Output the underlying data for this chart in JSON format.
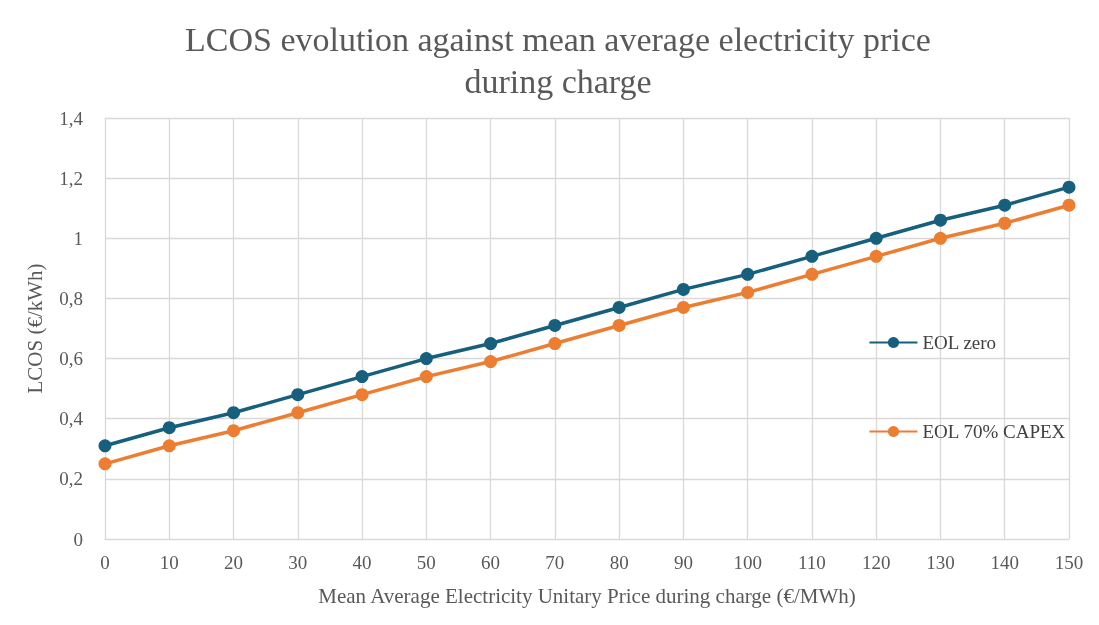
{
  "chart_data": {
    "type": "line",
    "title": "LCOS evolution against mean average electricity price\nduring charge",
    "xlabel": "Mean Average Electricity Unitary Price during charge (€/MWh)",
    "ylabel": "LCOS (€/kWh)",
    "x": [
      0,
      10,
      20,
      30,
      40,
      50,
      60,
      70,
      80,
      90,
      100,
      110,
      120,
      130,
      140,
      150
    ],
    "series": [
      {
        "name": "EOL zero",
        "color": "#17607d",
        "values": [
          0.31,
          0.37,
          0.42,
          0.48,
          0.54,
          0.6,
          0.65,
          0.71,
          0.77,
          0.83,
          0.88,
          0.94,
          1.0,
          1.06,
          1.11,
          1.17
        ]
      },
      {
        "name": "EOL 70% CAPEX",
        "color": "#ed7d31",
        "values": [
          0.25,
          0.31,
          0.36,
          0.42,
          0.48,
          0.54,
          0.59,
          0.65,
          0.71,
          0.77,
          0.82,
          0.88,
          0.94,
          1.0,
          1.05,
          1.11
        ]
      }
    ],
    "xlim": [
      0,
      150
    ],
    "xticks": [
      0,
      10,
      20,
      30,
      40,
      50,
      60,
      70,
      80,
      90,
      100,
      110,
      120,
      130,
      140,
      150
    ],
    "ylim": [
      0,
      1.4
    ],
    "yticks": [
      0,
      {
        "value": 0.2,
        "label": "0,2"
      },
      {
        "value": 0.4,
        "label": "0,4"
      },
      {
        "value": 0.6,
        "label": "0,6"
      },
      {
        "value": 0.8,
        "label": "0,8"
      },
      1,
      {
        "value": 1.2,
        "label": "1,2"
      },
      {
        "value": 1.4,
        "label": "1,4"
      }
    ],
    "grid": true,
    "legend": "right",
    "marker": "circle",
    "line_style": "solid"
  }
}
